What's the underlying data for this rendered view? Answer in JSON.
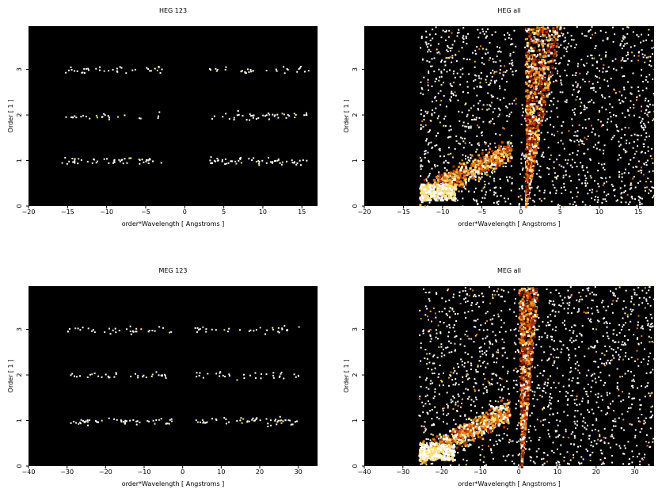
{
  "chart_data": [
    {
      "type": "heatmap",
      "title": "HEG 123",
      "xlabel": "order*Wavelength [ Angstroms ]",
      "ylabel": "Order [ 1 ]",
      "xlim": [
        -20,
        17
      ],
      "ylim": [
        0,
        3.95
      ],
      "xticks": [
        -20,
        -15,
        -10,
        -5,
        0,
        5,
        10,
        15
      ],
      "yticks": [
        0,
        1,
        2,
        3
      ],
      "colormap": "black-red-yellow-white",
      "band_centers": [
        1,
        2,
        3
      ],
      "band_extent_abs": [
        3,
        16
      ],
      "density": "sparse"
    },
    {
      "type": "heatmap",
      "title": "HEG all",
      "xlabel": "order*Wavelength [ Angstroms ]",
      "ylabel": "Order [ 1 ]",
      "xlim": [
        -20,
        17
      ],
      "ylim": [
        0,
        3.95
      ],
      "xticks": [
        -20,
        -15,
        -10,
        -5,
        0,
        5,
        10,
        15
      ],
      "yticks": [
        0,
        1,
        2,
        3
      ],
      "colormap": "black-red-yellow-white",
      "data_extent_x": [
        -13,
        17
      ],
      "cone_apex_x": [
        -0.5,
        0.5
      ],
      "cone_top_x": [
        0.5,
        5
      ],
      "density": "dense"
    },
    {
      "type": "heatmap",
      "title": "MEG 123",
      "xlabel": "order*Wavelength [ Angstroms ]",
      "ylabel": "Order [ 1 ]",
      "xlim": [
        -40,
        35
      ],
      "ylim": [
        0,
        3.95
      ],
      "xticks": [
        -40,
        -30,
        -20,
        -10,
        0,
        10,
        20,
        30
      ],
      "yticks": [
        0,
        1,
        2,
        3
      ],
      "colormap": "black-red-yellow-white",
      "band_centers": [
        1,
        2,
        3
      ],
      "band_extent_abs": [
        3,
        30
      ],
      "density": "sparse"
    },
    {
      "type": "heatmap",
      "title": "MEG all",
      "xlabel": "order*Wavelength [ Angstroms ]",
      "ylabel": "Order [ 1 ]",
      "xlim": [
        -40,
        35
      ],
      "ylim": [
        0,
        3.95
      ],
      "xticks": [
        -40,
        -30,
        -20,
        -10,
        0,
        10,
        20,
        30
      ],
      "yticks": [
        0,
        1,
        2,
        3
      ],
      "colormap": "black-red-yellow-white",
      "data_extent_x": [
        -26,
        35
      ],
      "cone_apex_x": [
        -0.5,
        0.5
      ],
      "cone_top_x": [
        -3,
        5
      ],
      "density": "dense"
    }
  ]
}
